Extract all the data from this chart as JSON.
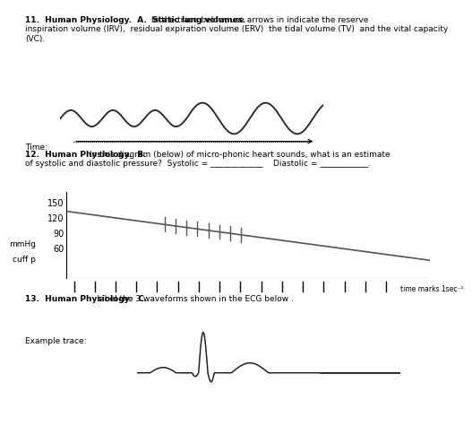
{
  "bg_color": "#ffffff",
  "text_color": "#000000",
  "line_color": "#555555",
  "wave_color": "#222222",
  "title11_bold": "11.  Human Physiology.  A.  Static lung volumes.",
  "title11_rest": "   In the trace below, use arrows in indicate the reserve\ninspiration volume (IRV),  residual expiration volume (ERV)  the tidal volume (TV)  and the vital capacity\n(VC).",
  "time_label": "Time:",
  "title12_bold": "12.  Human Physiology.  B.",
  "title12_rest": "   In this diagram (below) of micro-phonic heart sounds, what is an estimate\nof systolic and diastolic pressure?  Systolic = _____________    Diastolic = ____________.",
  "yticks12": [
    150,
    120,
    90,
    60
  ],
  "ylabel12_mmhg": "mmHg",
  "ylabel12_cuffp": "cuff p",
  "xlabel12": "time marks 1sec⁻¹",
  "title13_bold": "13.  Human Physiology:  C.",
  "title13_rest": "  label the 3 waveforms shown in the ECG below .",
  "example_trace_label": "Example trace:"
}
